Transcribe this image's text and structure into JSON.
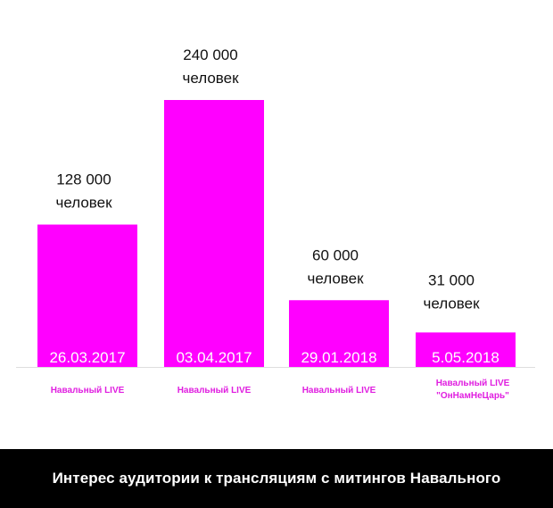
{
  "colors": {
    "bar": "#ff00ff",
    "bar_label": "#ffffff",
    "series_label": "#e01ee0",
    "value_text": "#111111",
    "baseline": "#dddddd",
    "caption_bg": "#000000",
    "caption_text": "#ffffff"
  },
  "caption": "Интерес аудитории к трансляциям с митингов Навального",
  "chart_data": {
    "type": "bar",
    "grid": false,
    "legend": "none",
    "ylim": [
      0,
      240000
    ],
    "categories": [
      "26.03.2017",
      "03.04.2017",
      "29.01.2018",
      "5.05.2018"
    ],
    "values": [
      128000,
      240000,
      60000,
      31000
    ],
    "value_labels": [
      [
        "128 000",
        "человек"
      ],
      [
        "240 000",
        "человек"
      ],
      [
        "60 000",
        "человек"
      ],
      [
        "31 000",
        "человек"
      ]
    ],
    "series_labels": [
      [
        "Навальный LIVE"
      ],
      [
        "Навальный LIVE"
      ],
      [
        "Навальный LIVE"
      ],
      [
        "Навальный LIVE",
        "\"ОнНамНеЦарь\""
      ]
    ]
  }
}
